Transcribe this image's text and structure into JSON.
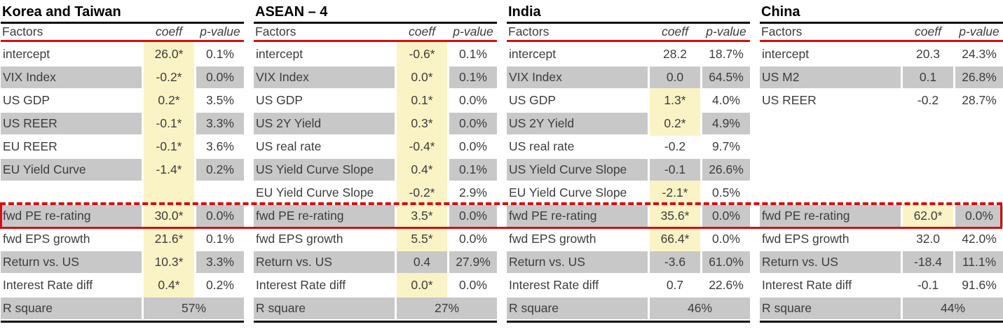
{
  "colors": {
    "accent_red": "#d40f14",
    "highlight_yellow": "#faf3c5",
    "row_gray": "#c8c8c8",
    "rule_black": "#0d0d0d",
    "text_gray": "#3d3d3d"
  },
  "red_box": {
    "highlighted_row": "fwd PE re-rating"
  },
  "tables": [
    {
      "title": "Korea and Taiwan",
      "headers": {
        "factors": "Factors",
        "coeff": "coeff",
        "pvalue": "p-value"
      },
      "rows": [
        {
          "factor": "intercept",
          "coeff": "26.0*",
          "pvalue": "0.1%",
          "hl": true,
          "blank": false
        },
        {
          "factor": "VIX Index",
          "coeff": "-0.2*",
          "pvalue": "0.0%",
          "hl": true,
          "blank": false
        },
        {
          "factor": "US GDP",
          "coeff": "0.2*",
          "pvalue": "3.5%",
          "hl": true,
          "blank": false
        },
        {
          "factor": "US REER",
          "coeff": "-0.1*",
          "pvalue": "3.3%",
          "hl": true,
          "blank": false
        },
        {
          "factor": "EU REER",
          "coeff": "-0.1*",
          "pvalue": "3.6%",
          "hl": true,
          "blank": false
        },
        {
          "factor": "EU Yield Curve",
          "coeff": "-1.4*",
          "pvalue": "0.2%",
          "hl": true,
          "blank": false
        },
        {
          "factor": "",
          "coeff": "",
          "pvalue": "",
          "hl": true,
          "blank": true
        },
        {
          "factor": "fwd PE re-rating",
          "coeff": "30.0*",
          "pvalue": "0.0%",
          "hl": true,
          "blank": false
        },
        {
          "factor": "fwd EPS growth",
          "coeff": "21.6*",
          "pvalue": "0.1%",
          "hl": true,
          "blank": false
        },
        {
          "factor": "Return vs. US",
          "coeff": "10.3*",
          "pvalue": "3.3%",
          "hl": true,
          "blank": false
        },
        {
          "factor": "Interest Rate diff",
          "coeff": "0.4*",
          "pvalue": "0.2%",
          "hl": true,
          "blank": false
        }
      ],
      "r_square": {
        "label": "R square",
        "value": "57%"
      }
    },
    {
      "title": "ASEAN – 4",
      "headers": {
        "factors": "Factors",
        "coeff": "coeff",
        "pvalue": "p-value"
      },
      "rows": [
        {
          "factor": "intercept",
          "coeff": "-0.6*",
          "pvalue": "0.1%",
          "hl": true,
          "blank": false
        },
        {
          "factor": "VIX Index",
          "coeff": "0.0*",
          "pvalue": "0.1%",
          "hl": true,
          "blank": false
        },
        {
          "factor": "US GDP",
          "coeff": "0.1*",
          "pvalue": "0.0%",
          "hl": true,
          "blank": false
        },
        {
          "factor": "US 2Y Yield",
          "coeff": "0.3*",
          "pvalue": "0.0%",
          "hl": true,
          "blank": false
        },
        {
          "factor": "US real rate",
          "coeff": "-0.4*",
          "pvalue": "0.0%",
          "hl": true,
          "blank": false
        },
        {
          "factor": "US Yield Curve Slope",
          "coeff": "0.4*",
          "pvalue": "0.1%",
          "hl": true,
          "blank": false
        },
        {
          "factor": "EU Yield Curve Slope",
          "coeff": "-0.2*",
          "pvalue": "2.9%",
          "hl": true,
          "blank": false
        },
        {
          "factor": "fwd PE re-rating",
          "coeff": "3.5*",
          "pvalue": "0.0%",
          "hl": true,
          "blank": false
        },
        {
          "factor": "fwd EPS growth",
          "coeff": "5.5*",
          "pvalue": "0.0%",
          "hl": true,
          "blank": false
        },
        {
          "factor": "Return vs. US",
          "coeff": "0.4",
          "pvalue": "27.9%",
          "hl": false,
          "blank": false
        },
        {
          "factor": "Interest Rate diff",
          "coeff": "0.0*",
          "pvalue": "0.0%",
          "hl": true,
          "blank": false
        }
      ],
      "r_square": {
        "label": "R square",
        "value": "27%"
      }
    },
    {
      "title": "India",
      "headers": {
        "factors": "Factors",
        "coeff": "coeff",
        "pvalue": "p-value"
      },
      "rows": [
        {
          "factor": "intercept",
          "coeff": "28.2",
          "pvalue": "18.7%",
          "hl": false,
          "blank": false
        },
        {
          "factor": "VIX Index",
          "coeff": "0.0",
          "pvalue": "64.5%",
          "hl": false,
          "blank": false
        },
        {
          "factor": "US GDP",
          "coeff": "1.3*",
          "pvalue": "4.0%",
          "hl": true,
          "blank": false
        },
        {
          "factor": "US 2Y Yield",
          "coeff": "0.2*",
          "pvalue": "4.9%",
          "hl": true,
          "blank": false
        },
        {
          "factor": "US real rate",
          "coeff": "-0.2",
          "pvalue": "9.7%",
          "hl": false,
          "blank": false
        },
        {
          "factor": "US Yield Curve Slope",
          "coeff": "-0.1",
          "pvalue": "26.6%",
          "hl": false,
          "blank": false
        },
        {
          "factor": "EU Yield Curve Slope",
          "coeff": "-2.1*",
          "pvalue": "0.5%",
          "hl": true,
          "blank": false
        },
        {
          "factor": "fwd PE re-rating",
          "coeff": "35.6*",
          "pvalue": "0.0%",
          "hl": true,
          "blank": false
        },
        {
          "factor": "fwd EPS growth",
          "coeff": "66.4*",
          "pvalue": "0.0%",
          "hl": true,
          "blank": false
        },
        {
          "factor": "Return vs. US",
          "coeff": "-3.6",
          "pvalue": "61.0%",
          "hl": false,
          "blank": false
        },
        {
          "factor": "Interest Rate diff",
          "coeff": "0.7",
          "pvalue": "22.6%",
          "hl": false,
          "blank": false
        }
      ],
      "r_square": {
        "label": "R square",
        "value": "46%"
      }
    },
    {
      "title": "China",
      "headers": {
        "factors": "Factors",
        "coeff": "coeff",
        "pvalue": "p-value"
      },
      "rows": [
        {
          "factor": "intercept",
          "coeff": "20.3",
          "pvalue": "24.3%",
          "hl": false,
          "blank": false
        },
        {
          "factor": "US M2",
          "coeff": "0.1",
          "pvalue": "26.8%",
          "hl": false,
          "blank": false
        },
        {
          "factor": "US REER",
          "coeff": "-0.2",
          "pvalue": "28.7%",
          "hl": false,
          "blank": false
        },
        {
          "factor": "",
          "coeff": "",
          "pvalue": "",
          "hl": false,
          "blank": true
        },
        {
          "factor": "",
          "coeff": "",
          "pvalue": "",
          "hl": false,
          "blank": true
        },
        {
          "factor": "",
          "coeff": "",
          "pvalue": "",
          "hl": false,
          "blank": true
        },
        {
          "factor": "",
          "coeff": "",
          "pvalue": "",
          "hl": false,
          "blank": true
        },
        {
          "factor": "fwd PE re-rating",
          "coeff": "62.0*",
          "pvalue": "0.0%",
          "hl": true,
          "blank": false
        },
        {
          "factor": "fwd EPS growth",
          "coeff": "32.0",
          "pvalue": "42.0%",
          "hl": false,
          "blank": false
        },
        {
          "factor": "Return vs. US",
          "coeff": "-18.4",
          "pvalue": "11.1%",
          "hl": false,
          "blank": false
        },
        {
          "factor": "Interest Rate diff",
          "coeff": "-0.1",
          "pvalue": "91.6%",
          "hl": false,
          "blank": false
        }
      ],
      "r_square": {
        "label": "R square",
        "value": "44%"
      }
    }
  ]
}
